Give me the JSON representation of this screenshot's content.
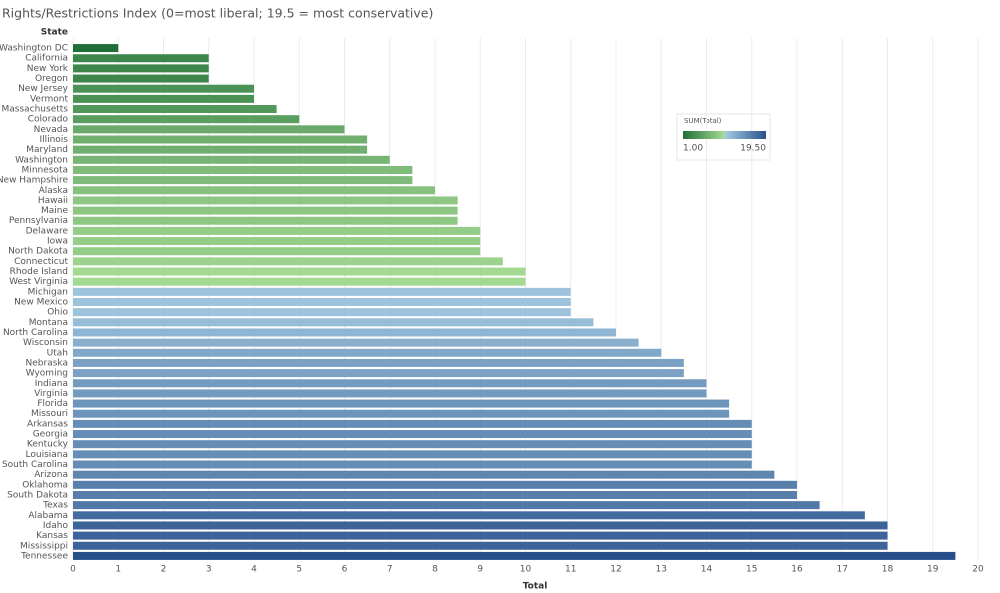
{
  "chart_data": {
    "type": "bar",
    "orientation": "horizontal",
    "title": "Rights/Restrictions Index (0=most liberal; 19.5 = most conservative)",
    "category_header": "State",
    "x_label": "Total",
    "categories": [
      "Washington DC",
      "California",
      "New York",
      "Oregon",
      "New Jersey",
      "Vermont",
      "Massachusetts",
      "Colorado",
      "Nevada",
      "Illinois",
      "Maryland",
      "Washington",
      "Minnesota",
      "New Hampshire",
      "Alaska",
      "Hawaii",
      "Maine",
      "Pennsylvania",
      "Delaware",
      "Iowa",
      "North Dakota",
      "Connecticut",
      "Rhode Island",
      "West Virginia",
      "Michigan",
      "New Mexico",
      "Ohio",
      "Montana",
      "North Carolina",
      "Wisconsin",
      "Utah",
      "Nebraska",
      "Wyoming",
      "Indiana",
      "Virginia",
      "Florida",
      "Missouri",
      "Arkansas",
      "Georgia",
      "Kentucky",
      "Louisiana",
      "South Carolina",
      "Arizona",
      "Oklahoma",
      "South Dakota",
      "Texas",
      "Alabama",
      "Idaho",
      "Kansas",
      "Mississippi",
      "Tennessee"
    ],
    "values": [
      1,
      3,
      3,
      3,
      4,
      4,
      4.5,
      5,
      6,
      6.5,
      6.5,
      7,
      7.5,
      7.5,
      8,
      8.5,
      8.5,
      8.5,
      9,
      9,
      9,
      9.5,
      10,
      10,
      11,
      11,
      11,
      11.5,
      12,
      12.5,
      13,
      13.5,
      13.5,
      14,
      14,
      14.5,
      14.5,
      15,
      15,
      15,
      15,
      15,
      15.5,
      16,
      16,
      16.5,
      17.5,
      18,
      18,
      18,
      19.5
    ],
    "xlim": [
      0,
      20
    ],
    "xticks": [
      0,
      1,
      2,
      3,
      4,
      5,
      6,
      7,
      8,
      9,
      10,
      11,
      12,
      13,
      14,
      15,
      16,
      17,
      18,
      19,
      20
    ],
    "grid": true,
    "color_legend": {
      "title": "SUM(Total)",
      "range": [
        {
          "value": 1,
          "label": "1.00"
        },
        {
          "value": 19.5,
          "label": "19.50"
        }
      ],
      "colors": [
        "#1f6e37",
        "#a8dc95",
        "#a9cde3",
        "#27508a"
      ]
    }
  }
}
